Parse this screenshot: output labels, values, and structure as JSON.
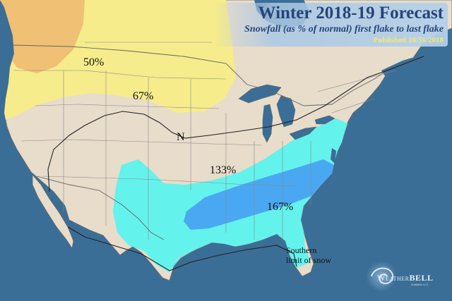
{
  "title": "Winter 2018-19 Forecast",
  "subtitle": "Snowfall (as % of normal) first flake to last flake",
  "published": "Published 10/31/2018",
  "labels": {
    "pct_50": "50%",
    "pct_67": "67%",
    "pct_133": "133%",
    "pct_167": "167%",
    "normal": "N",
    "southern_limit_line1": "Southern",
    "southern_limit_line2": "limit of snow"
  },
  "logo": {
    "brand_prefix": "Weather",
    "brand_suffix": "BELL",
    "brand_sub": "Analytics LLC"
  },
  "colors": {
    "ocean": "#3a6e96",
    "land": "#e8dccb",
    "below_normal_67": "#f6ec8c",
    "below_normal_50": "#efb870",
    "above_normal_133": "#64f2ec",
    "above_normal_167": "#4aa8f2",
    "title_text": "#27457a",
    "published_text": "#f5e870"
  }
}
